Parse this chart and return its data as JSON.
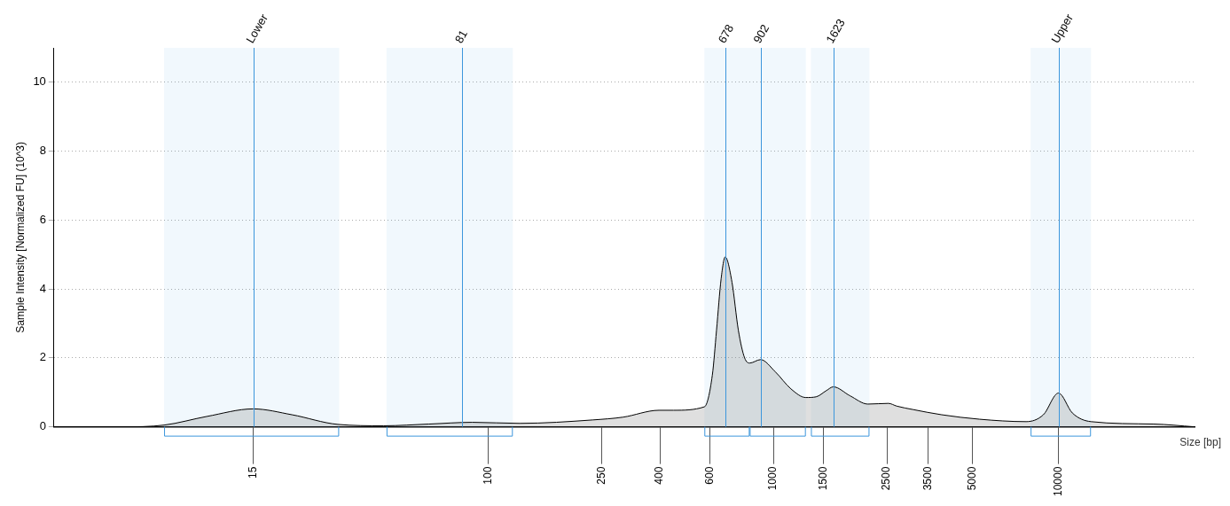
{
  "chart_data": {
    "type": "area",
    "xlabel": "Size [bp]",
    "ylabel": "Sample Intensity [Normalized FU] (10^3)",
    "xlim": [
      3,
      30000
    ],
    "log": "x",
    "xticks": [
      15,
      100,
      250,
      400,
      600,
      1000,
      1500,
      2500,
      3500,
      5000,
      10000
    ],
    "ylim": [
      0,
      11
    ],
    "yticks": [
      0,
      2,
      4,
      6,
      8,
      10
    ],
    "grid": "y",
    "legend": false,
    "series": [
      {
        "color": "#000000",
        "x": [
          3,
          5.2,
          7.3,
          10.3,
          15,
          20.5,
          29.7,
          43,
          62,
          88,
          129,
          233,
          297,
          397,
          447,
          573,
          611,
          632,
          656,
          678,
          716,
          754,
          793,
          826,
          902,
          1015,
          1153,
          1300,
          1412,
          1534,
          1623,
          1858,
          2145,
          2533,
          2710,
          3094,
          3893,
          5287,
          7700,
          8850,
          10000,
          11190,
          13000,
          21570,
          30000
        ],
        "values": [
          0,
          0,
          0.05,
          0.3,
          0.52,
          0.35,
          0.07,
          0.03,
          0.08,
          0.13,
          0.1,
          0.2,
          0.28,
          0.48,
          0.48,
          0.58,
          1.5,
          2.8,
          4.3,
          4.93,
          4.2,
          2.8,
          2.0,
          1.85,
          1.95,
          1.6,
          1.1,
          0.85,
          0.87,
          1.05,
          1.16,
          0.9,
          0.66,
          0.68,
          0.6,
          0.5,
          0.35,
          0.22,
          0.15,
          0.35,
          0.98,
          0.4,
          0.15,
          0.08,
          0
        ]
      }
    ],
    "ref_lines": [
      {
        "axis": "x",
        "value": 15,
        "label": "Lower",
        "color": "#3c96dc"
      },
      {
        "axis": "x",
        "value": 81,
        "label": "81",
        "color": "#3c96dc"
      },
      {
        "axis": "x",
        "value": 678,
        "label": "678",
        "color": "#3c96dc"
      },
      {
        "axis": "x",
        "value": 902,
        "label": "902",
        "color": "#3c96dc"
      },
      {
        "axis": "x",
        "value": 1623,
        "label": "1623",
        "color": "#3c96dc"
      },
      {
        "axis": "x",
        "value": 10000,
        "label": "Upper",
        "color": "#3c96dc"
      }
    ],
    "bands": [
      {
        "axis": "x",
        "from": 7.3,
        "to": 30,
        "color": "#3c96dc"
      },
      {
        "axis": "x",
        "from": 44,
        "to": 122,
        "color": "#3c96dc"
      },
      {
        "axis": "x",
        "from": 573,
        "to": 826,
        "color": "#3c96dc"
      },
      {
        "axis": "x",
        "from": 826,
        "to": 1300,
        "color": "#3c96dc"
      },
      {
        "axis": "x",
        "from": 1355,
        "to": 2173,
        "color": "#3c96dc"
      },
      {
        "axis": "x",
        "from": 7985,
        "to": 13000,
        "color": "#3c96dc"
      }
    ]
  }
}
